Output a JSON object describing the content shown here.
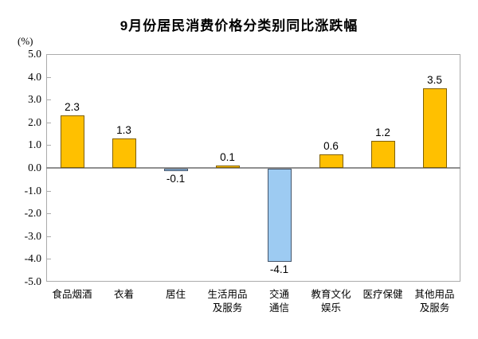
{
  "title": "9月份居民消费价格分类别同比涨跌幅",
  "unit_label": "(%)",
  "chart_data": {
    "type": "bar",
    "title": "9月份居民消费价格分类别同比涨跌幅",
    "ylabel": "(%)",
    "xlabel": "",
    "ylim": [
      -5.0,
      5.0
    ],
    "ytick_step": 1.0,
    "yticks": [
      5.0,
      4.0,
      3.0,
      2.0,
      1.0,
      0.0,
      -1.0,
      -2.0,
      -3.0,
      -4.0,
      -5.0
    ],
    "categories": [
      "食品烟酒",
      "衣着",
      "居住",
      "生活用品及服务",
      "交通通信",
      "教育文化娱乐",
      "医疗保健",
      "其他用品及服务"
    ],
    "category_lines": [
      [
        "食品烟酒"
      ],
      [
        "衣着"
      ],
      [
        "居住"
      ],
      [
        "生活用品",
        "及服务"
      ],
      [
        "交通",
        "通信"
      ],
      [
        "教育文化",
        "娱乐"
      ],
      [
        "医疗保健"
      ],
      [
        "其他用品",
        "及服务"
      ]
    ],
    "values": [
      2.3,
      1.3,
      -0.1,
      0.1,
      -4.1,
      0.6,
      1.2,
      3.5
    ],
    "data_labels": [
      "2.3",
      "1.3",
      "-0.1",
      "0.1",
      "-4.1",
      "0.6",
      "1.2",
      "3.5"
    ],
    "grid": false,
    "legend": null,
    "colors": {
      "positive_fill": "#FFC000",
      "positive_border": "#806000",
      "negative_fill": "#9DCBF2",
      "negative_border": "#44546A",
      "plot_border": "#ABABAB",
      "zero_line": "#8F8F8F",
      "text": "#000000"
    }
  }
}
